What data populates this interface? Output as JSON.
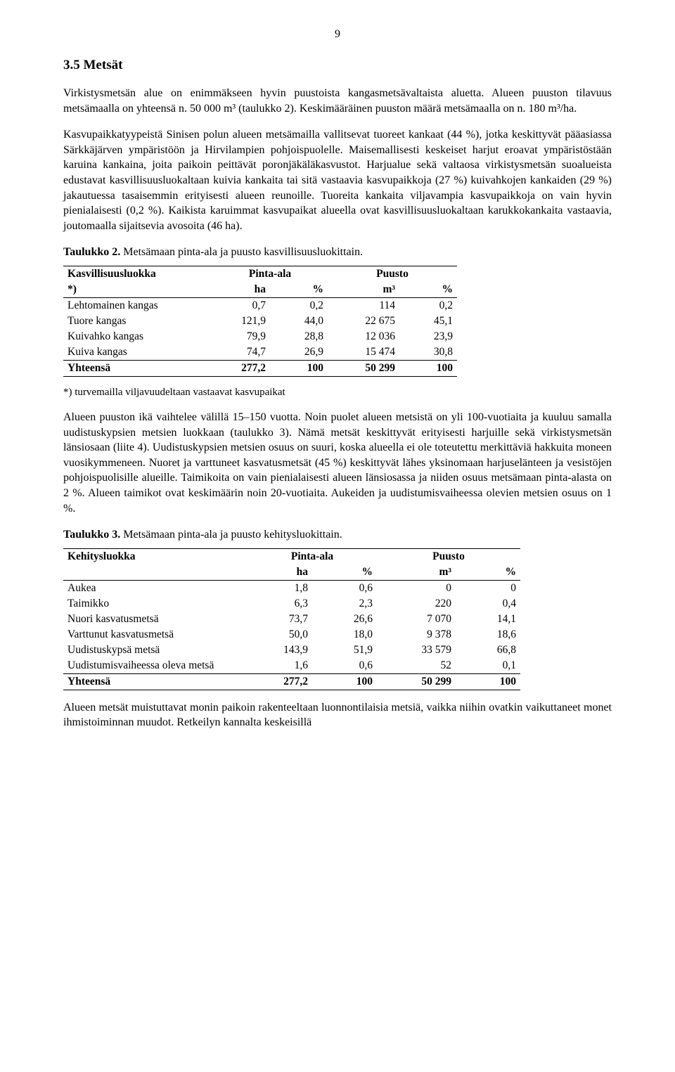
{
  "page_number": "9",
  "heading": "3.5 Metsät",
  "p1": "Virkistysmetsän alue on enimmäkseen hyvin puustoista kangasmetsävaltaista aluetta. Alueen puuston tilavuus metsämaalla on yhteensä n. 50 000 m³ (taulukko 2). Keskimääräinen puuston määrä metsämaalla on n. 180 m³/ha.",
  "p2": "Kasvupaikkatyypeistä Sinisen polun alueen metsämailla vallitsevat tuoreet kankaat (44 %), jotka keskittyvät pääasiassa Särkkäjärven ympäristöön ja Hirvilampien pohjoispuolelle. Maisemallisesti keskeiset harjut eroavat ympäristöstään karuina kankaina, joita paikoin peittävät poronjäkäläkasvustot. Harjualue sekä valtaosa virkistysmetsän suoalueista edustavat kasvillisuusluokaltaan kuivia kankaita tai sitä vastaavia kasvupaikkoja (27 %) kuivahkojen kankaiden (29 %) jakautuessa tasaisemmin erityisesti alueen reunoille. Tuoreita kankaita viljavampia kasvupaikkoja on vain hyvin pienialaisesti (0,2 %). Kaikista karuimmat kasvupaikat alueella ovat kasvillisuusluokaltaan karukkokankaita vastaavia, joutomaalla sijaitsevia avosoita (46 ha).",
  "table2": {
    "caption_bold": "Taulukko 2.",
    "caption_rest": " Metsämaan pinta-ala ja puusto kasvillisuusluokittain.",
    "col_group_left": "Kasvillisuusluokka",
    "col_group_left_sub": "*)",
    "col_group_area": "Pinta-ala",
    "col_group_stand": "Puusto",
    "col_ha": "ha",
    "col_pct1": "%",
    "col_m3": "m³",
    "col_pct2": "%",
    "rows": [
      {
        "label": "Lehtomainen kangas",
        "ha": "0,7",
        "pct1": "0,2",
        "m3": "114",
        "pct2": "0,2"
      },
      {
        "label": "Tuore kangas",
        "ha": "121,9",
        "pct1": "44,0",
        "m3": "22 675",
        "pct2": "45,1"
      },
      {
        "label": "Kuivahko kangas",
        "ha": "79,9",
        "pct1": "28,8",
        "m3": "12 036",
        "pct2": "23,9"
      },
      {
        "label": "Kuiva kangas",
        "ha": "74,7",
        "pct1": "26,9",
        "m3": "15 474",
        "pct2": "30,8"
      }
    ],
    "total": {
      "label": "Yhteensä",
      "ha": "277,2",
      "pct1": "100",
      "m3": "50 299",
      "pct2": "100"
    },
    "footnote": "*) turvemailla viljavuudeltaan vastaavat kasvupaikat"
  },
  "p3": "Alueen puuston ikä vaihtelee välillä 15–150 vuotta. Noin puolet alueen metsistä on yli 100-vuotiaita ja kuuluu samalla uudistuskypsien metsien luokkaan (taulukko 3). Nämä metsät keskittyvät erityisesti harjuille sekä virkistysmetsän länsiosaan (liite 4). Uudistuskypsien metsien osuus on suuri, koska alueella ei ole toteutettu merkittäviä hakkuita moneen vuosikymmeneen. Nuoret ja varttuneet kasvatusmetsät (45 %) keskittyvät lähes yksinomaan harjuselänteen ja vesistöjen pohjoispuolisille alueille. Taimikoita on vain pienialaisesti alueen länsiosassa ja niiden osuus metsämaan pinta-alasta on 2 %. Alueen taimikot ovat keskimäärin noin 20-vuotiaita. Aukeiden ja uudistumisvaiheessa olevien metsien osuus on 1 %.",
  "table3": {
    "caption_bold": "Taulukko 3.",
    "caption_rest": " Metsämaan pinta-ala ja puusto kehitysluokittain.",
    "col_group_left": "Kehitysluokka",
    "col_group_area": "Pinta-ala",
    "col_group_stand": "Puusto",
    "col_ha": "ha",
    "col_pct1": "%",
    "col_m3": "m³",
    "col_pct2": "%",
    "rows": [
      {
        "label": "Aukea",
        "ha": "1,8",
        "pct1": "0,6",
        "m3": "0",
        "pct2": "0"
      },
      {
        "label": "Taimikko",
        "ha": "6,3",
        "pct1": "2,3",
        "m3": "220",
        "pct2": "0,4"
      },
      {
        "label": "Nuori kasvatusmetsä",
        "ha": "73,7",
        "pct1": "26,6",
        "m3": "7 070",
        "pct2": "14,1"
      },
      {
        "label": "Varttunut kasvatusmetsä",
        "ha": "50,0",
        "pct1": "18,0",
        "m3": "9 378",
        "pct2": "18,6"
      },
      {
        "label": "Uudistuskypsä metsä",
        "ha": "143,9",
        "pct1": "51,9",
        "m3": "33 579",
        "pct2": "66,8"
      },
      {
        "label": "Uudistumisvaiheessa oleva metsä",
        "ha": "1,6",
        "pct1": "0,6",
        "m3": "52",
        "pct2": "0,1"
      }
    ],
    "total": {
      "label": "Yhteensä",
      "ha": "277,2",
      "pct1": "100",
      "m3": "50 299",
      "pct2": "100"
    }
  },
  "p4": "Alueen metsät muistuttavat monin paikoin rakenteeltaan luonnontilaisia metsiä, vaikka niihin ovatkin vaikuttaneet monet ihmistoiminnan muudot. Retkeilyn kannalta keskeisillä"
}
